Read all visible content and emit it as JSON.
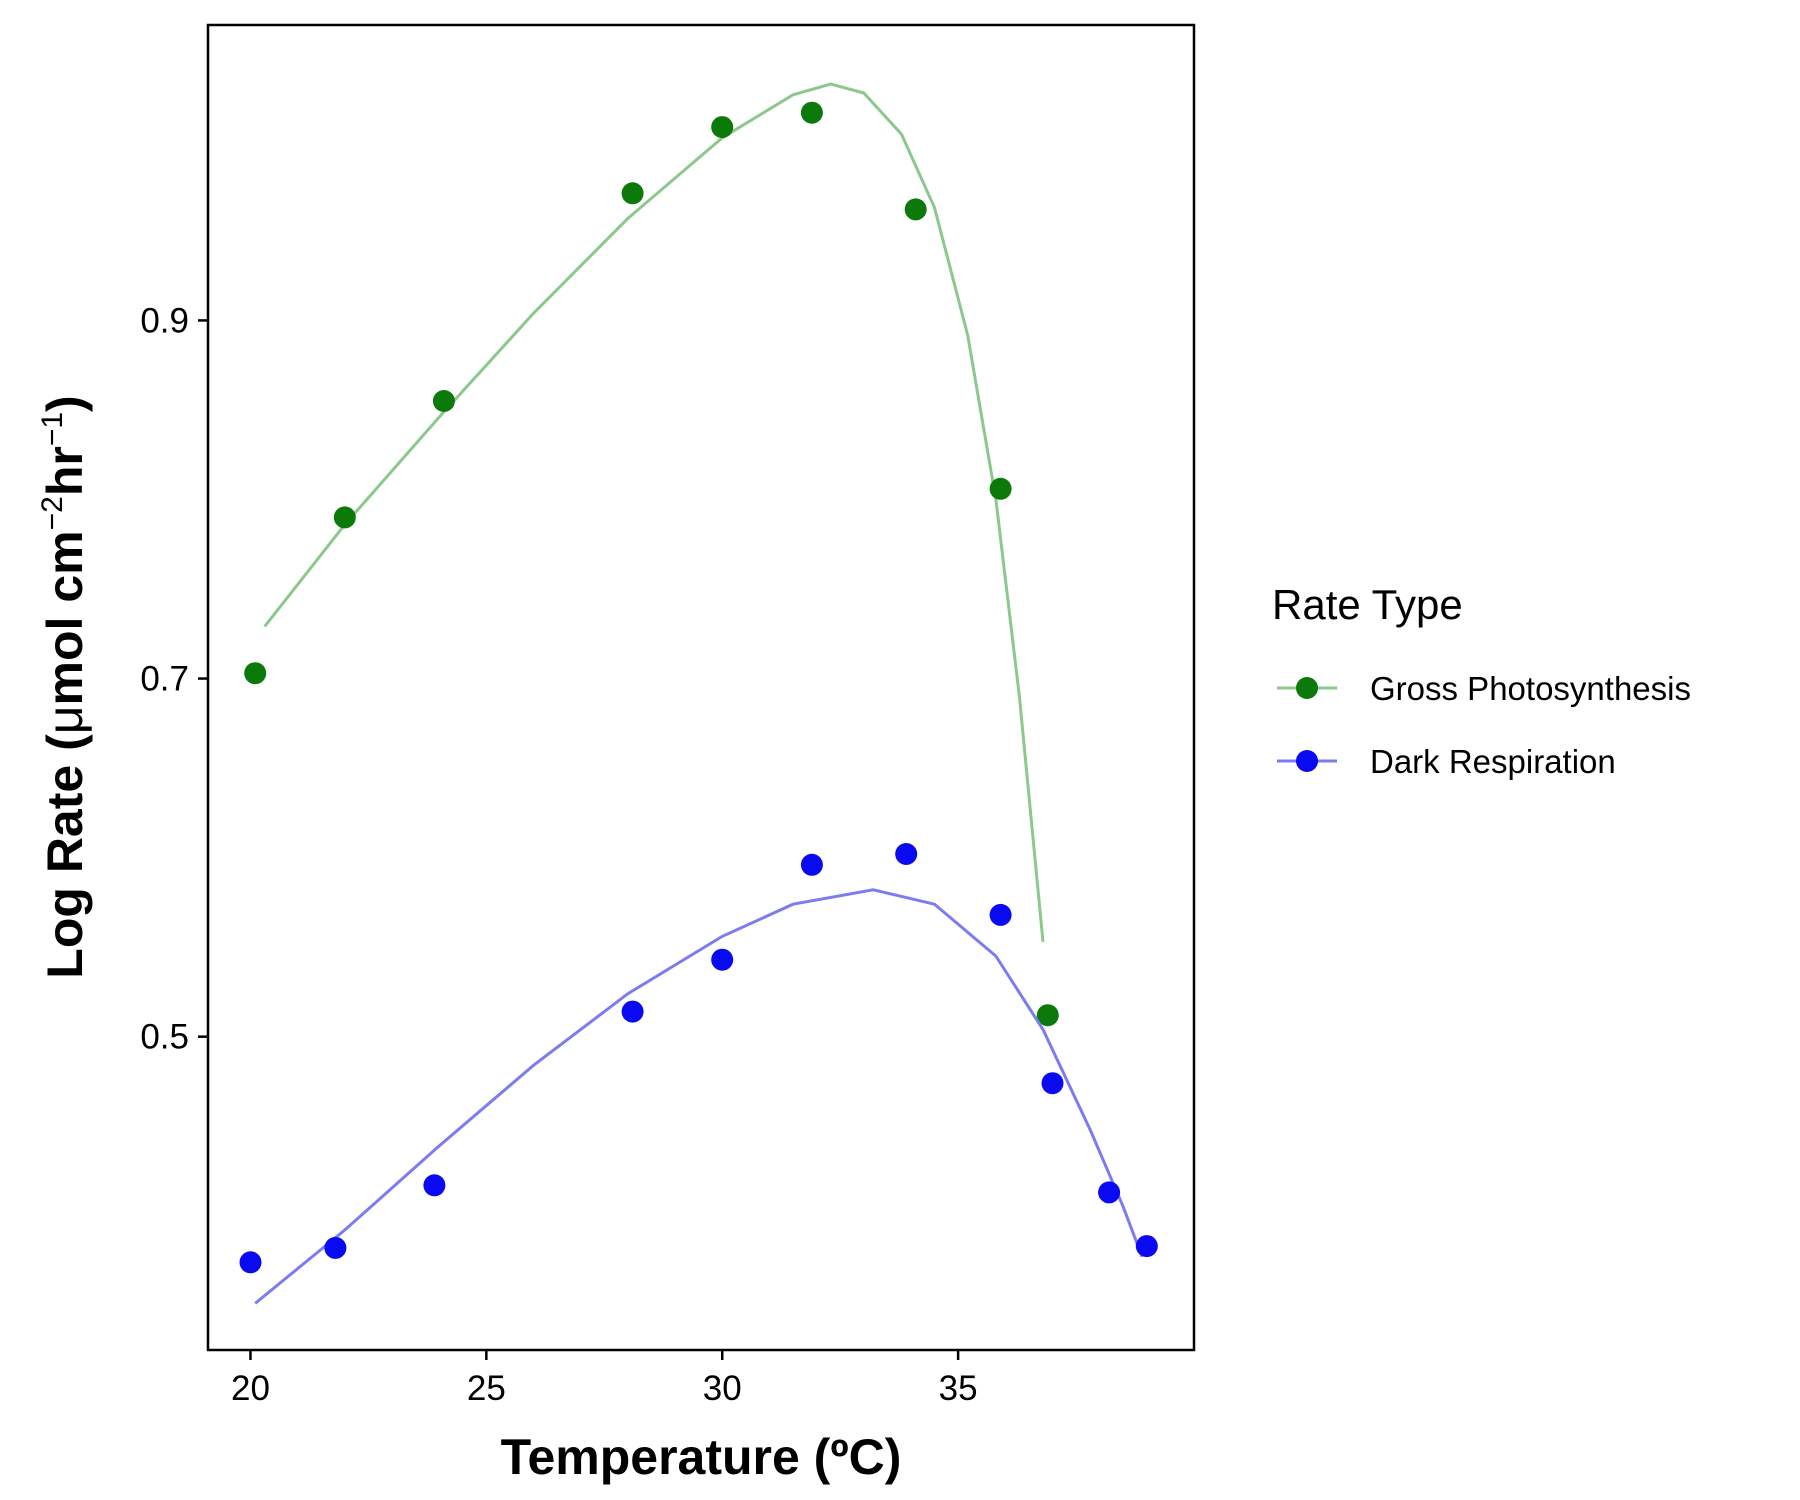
{
  "chart_data": {
    "type": "scatter",
    "xlabel": "Temperature (ºC)",
    "ylabel": {
      "prefix": "Log Rate (",
      "mu": "μ",
      "mol_cm": "mol cm",
      "sup_neg2": "−2",
      "hr": "hr",
      "sup_neg1": "−1",
      "suffix": ")"
    },
    "xlim": [
      19.1,
      40.0
    ],
    "ylim": [
      0.325,
      1.065
    ],
    "x_ticks": [
      20,
      25,
      30,
      35
    ],
    "y_ticks": [
      0.5,
      0.7,
      0.9
    ],
    "x_tick_labels": [
      "20",
      "25",
      "30",
      "35"
    ],
    "y_tick_labels": [
      "0.5",
      "0.7",
      "0.9"
    ],
    "grid": false,
    "legend": {
      "title": "Rate Type",
      "position": "right"
    },
    "series": [
      {
        "name": "Gross Photosynthesis",
        "color": "#0b7a0b",
        "fit_color": "#8cc88c",
        "points": [
          {
            "x": 20.1,
            "y": 0.703
          },
          {
            "x": 22.0,
            "y": 0.79
          },
          {
            "x": 24.1,
            "y": 0.855
          },
          {
            "x": 28.1,
            "y": 0.971
          },
          {
            "x": 30.0,
            "y": 1.008
          },
          {
            "x": 31.9,
            "y": 1.016
          },
          {
            "x": 34.1,
            "y": 0.962
          },
          {
            "x": 35.9,
            "y": 0.806
          },
          {
            "x": 36.9,
            "y": 0.512
          }
        ],
        "fit": [
          {
            "x": 20.3,
            "y": 0.729
          },
          {
            "x": 22.0,
            "y": 0.786
          },
          {
            "x": 24.0,
            "y": 0.846
          },
          {
            "x": 26.0,
            "y": 0.904
          },
          {
            "x": 28.0,
            "y": 0.957
          },
          {
            "x": 30.0,
            "y": 1.002
          },
          {
            "x": 31.5,
            "y": 1.026
          },
          {
            "x": 32.3,
            "y": 1.032
          },
          {
            "x": 33.0,
            "y": 1.027
          },
          {
            "x": 33.8,
            "y": 1.004
          },
          {
            "x": 34.5,
            "y": 0.963
          },
          {
            "x": 35.2,
            "y": 0.892
          },
          {
            "x": 35.8,
            "y": 0.8
          },
          {
            "x": 36.3,
            "y": 0.69
          },
          {
            "x": 36.8,
            "y": 0.553
          }
        ]
      },
      {
        "name": "Dark Respiration",
        "color": "#0a0af2",
        "fit_color": "#7c7cf0",
        "points": [
          {
            "x": 20.0,
            "y": 0.374
          },
          {
            "x": 21.8,
            "y": 0.382
          },
          {
            "x": 23.9,
            "y": 0.417
          },
          {
            "x": 28.1,
            "y": 0.514
          },
          {
            "x": 30.0,
            "y": 0.543
          },
          {
            "x": 31.9,
            "y": 0.596
          },
          {
            "x": 33.9,
            "y": 0.602
          },
          {
            "x": 35.9,
            "y": 0.568
          },
          {
            "x": 37.0,
            "y": 0.474
          },
          {
            "x": 38.2,
            "y": 0.413
          },
          {
            "x": 39.0,
            "y": 0.383
          }
        ],
        "fit": [
          {
            "x": 20.1,
            "y": 0.351
          },
          {
            "x": 22.0,
            "y": 0.392
          },
          {
            "x": 24.0,
            "y": 0.439
          },
          {
            "x": 26.0,
            "y": 0.484
          },
          {
            "x": 28.0,
            "y": 0.524
          },
          {
            "x": 30.0,
            "y": 0.556
          },
          {
            "x": 31.5,
            "y": 0.574
          },
          {
            "x": 33.2,
            "y": 0.582
          },
          {
            "x": 34.5,
            "y": 0.574
          },
          {
            "x": 35.8,
            "y": 0.545
          },
          {
            "x": 36.8,
            "y": 0.504
          },
          {
            "x": 37.8,
            "y": 0.448
          },
          {
            "x": 38.5,
            "y": 0.405
          },
          {
            "x": 38.9,
            "y": 0.377
          }
        ]
      }
    ]
  }
}
